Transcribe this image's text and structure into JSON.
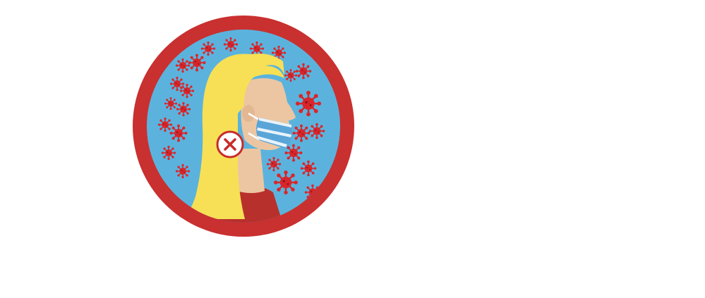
{
  "colors": {
    "page_background": "#ffffff",
    "ring": "#c93030",
    "sky": "#5bb3dd",
    "virus": "#d8262b",
    "hair": "#f7e055",
    "skin": "#ecc6a2",
    "shirt": "#b8302c",
    "mask": "#5aa5d8",
    "mask_stripe": "#e8f3fb",
    "no_symbol": "#c82b2b"
  },
  "icons": {
    "main": "woman-wearing-mask-incorrectly-icon",
    "warning": "x-mark-icon",
    "particles": "coronavirus-icon"
  }
}
